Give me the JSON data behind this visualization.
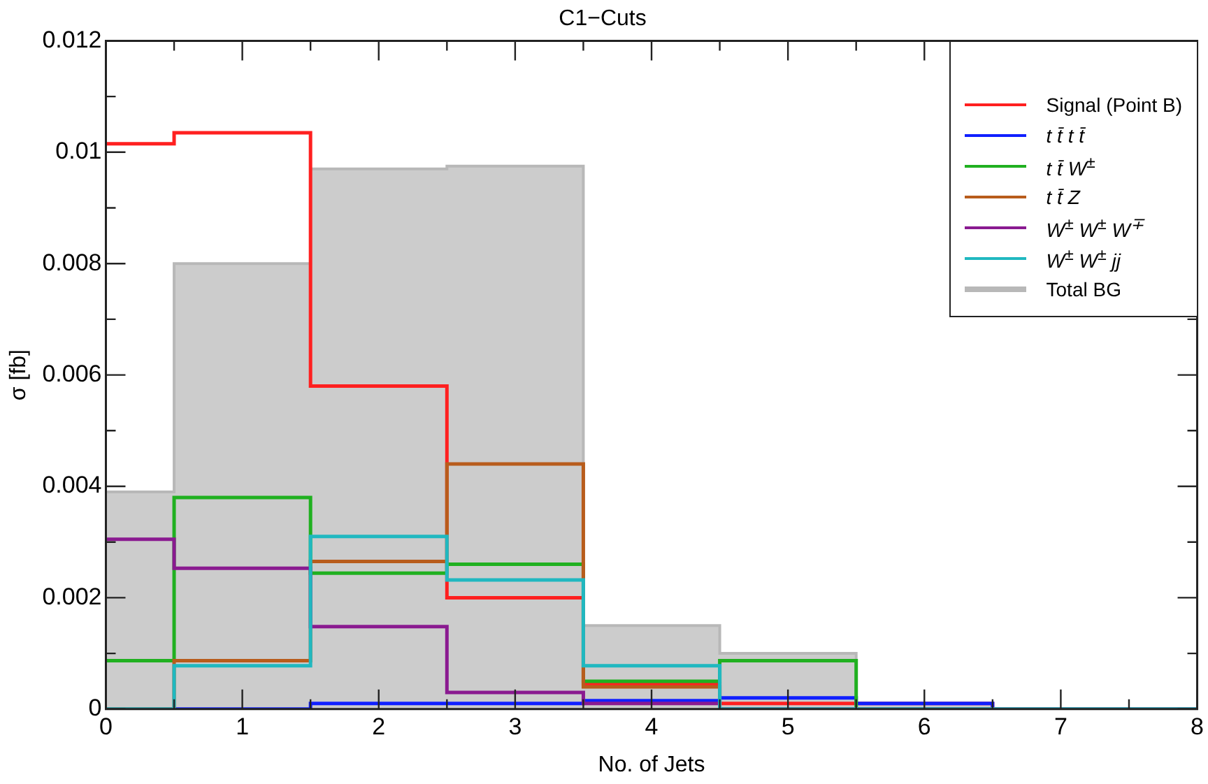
{
  "chart_data": {
    "type": "histogram",
    "title": "C1−Cuts",
    "xlabel": "No. of Jets",
    "ylabel": "σ [fb]",
    "bins": [
      0,
      0.5,
      1.5,
      2.5,
      3.5,
      4.5,
      5.5,
      6.5,
      7.5,
      8
    ],
    "series": [
      {
        "name": "Signal (Point B)",
        "color": "#ff2020",
        "values": [
          0.01015,
          0.01035,
          0.0058,
          0.002,
          0.00045,
          0.0001,
          0.0001,
          0,
          0
        ]
      },
      {
        "name": "t t̄ t t̄",
        "color": "#1020ff",
        "values": [
          0,
          0,
          0.0001,
          0.0001,
          0.00015,
          0.0002,
          0.0001,
          0,
          0
        ]
      },
      {
        "name": "t t̄ W$^{±}$",
        "color": "#20b020",
        "values": [
          0.00087,
          0.0038,
          0.00244,
          0.0026,
          0.0005,
          0.00087,
          0,
          0,
          0
        ]
      },
      {
        "name": "t t̄ Z",
        "color": "#b85c1c",
        "values": [
          0,
          0.00087,
          0.00265,
          0.0044,
          0.0004,
          0,
          0,
          0,
          0
        ]
      },
      {
        "name": "W$^{±}$ W$^{±}$ W$^{∓}$",
        "color": "#8a1a90",
        "values": [
          0.00305,
          0.00253,
          0.00148,
          0.0003,
          0.0001,
          0,
          0,
          0,
          0
        ]
      },
      {
        "name": "W$^{±}$ W$^{±}$ jj",
        "color": "#20b8c0",
        "values": [
          0,
          0.00078,
          0.0031,
          0.00232,
          0.00078,
          0,
          0,
          0,
          0
        ]
      },
      {
        "name": "Total BG",
        "color": "#cccccc",
        "values": [
          0.0039,
          0.008,
          0.0097,
          0.00975,
          0.0015,
          0.001,
          0.0001,
          0,
          0
        ]
      }
    ],
    "xlim": [
      0,
      8
    ],
    "xticks": [
      0,
      {
        "value": 0.5,
        "label": null
      },
      1,
      {
        "value": 1.5,
        "label": null
      },
      2,
      {
        "value": 2.5,
        "label": null
      },
      3,
      {
        "value": 3.5,
        "label": null
      },
      4,
      {
        "value": 4.5,
        "label": null
      },
      5,
      {
        "value": 5.5,
        "label": null
      },
      6,
      {
        "value": 6.5,
        "label": null
      },
      7,
      {
        "value": 7.5,
        "label": null
      },
      8
    ],
    "ylim": [
      0,
      0.012
    ],
    "yticks": [
      0,
      {
        "value": 0.001,
        "label": null
      },
      0.002,
      {
        "value": 0.003,
        "label": null
      },
      0.004,
      {
        "value": 0.005,
        "label": null
      },
      0.006,
      {
        "value": 0.007,
        "label": null
      },
      0.008,
      {
        "value": 0.009,
        "label": null
      },
      0.01,
      {
        "value": 0.011,
        "label": null
      },
      0.012
    ],
    "grid": false,
    "legend": "top right"
  }
}
